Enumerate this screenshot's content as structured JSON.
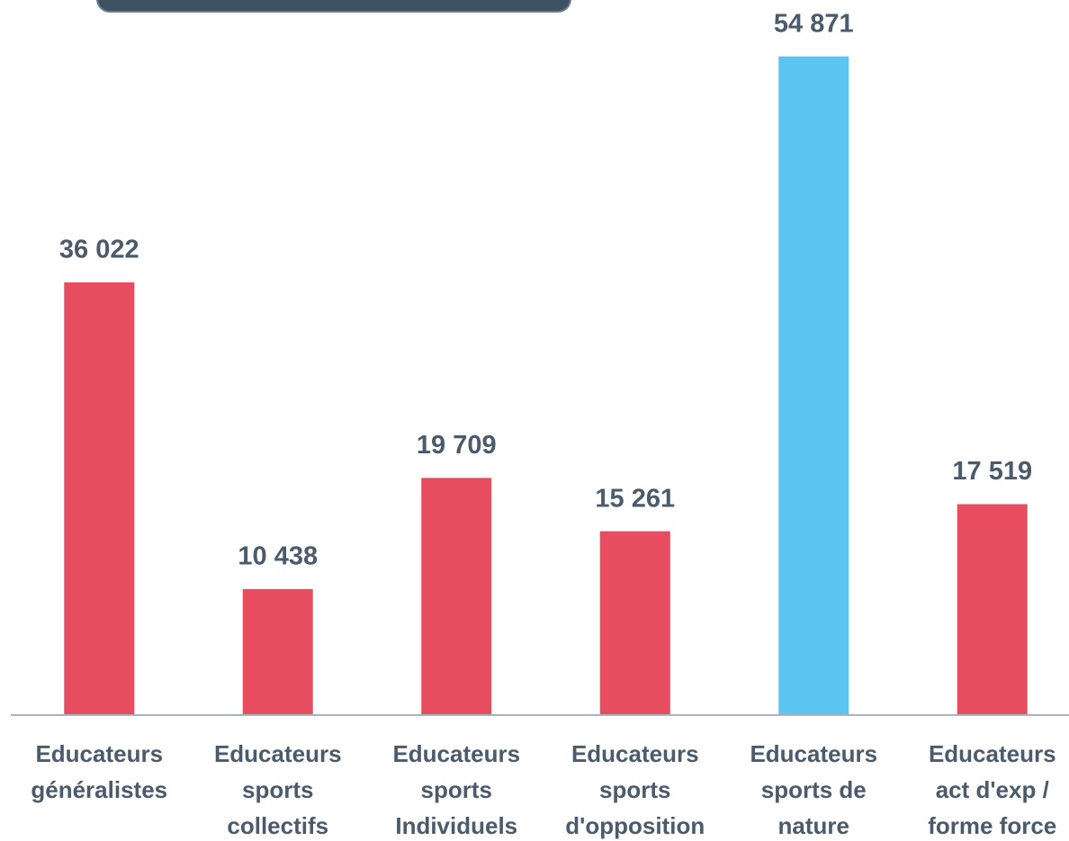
{
  "chart_data": {
    "type": "bar",
    "categories": [
      [
        "Educateurs",
        "généralistes"
      ],
      [
        "Educateurs",
        "sports",
        "collectifs"
      ],
      [
        "Educateurs",
        "sports",
        "Individuels"
      ],
      [
        "Educateurs",
        "sports",
        "d'opposition"
      ],
      [
        "Educateurs",
        "sports de",
        "nature"
      ],
      [
        "Educateurs",
        "act d'exp /",
        "forme force"
      ]
    ],
    "values": [
      36022,
      10438,
      19709,
      15261,
      54871,
      17519
    ],
    "value_labels": [
      "36 022",
      "10 438",
      "19 709",
      "15 261",
      "54 871",
      "17 519"
    ],
    "colors": [
      "#e84c5f",
      "#e84c5f",
      "#e84c5f",
      "#e84c5f",
      "#5bc4f1",
      "#e84c5f"
    ],
    "ylim": [
      0,
      55000
    ]
  }
}
